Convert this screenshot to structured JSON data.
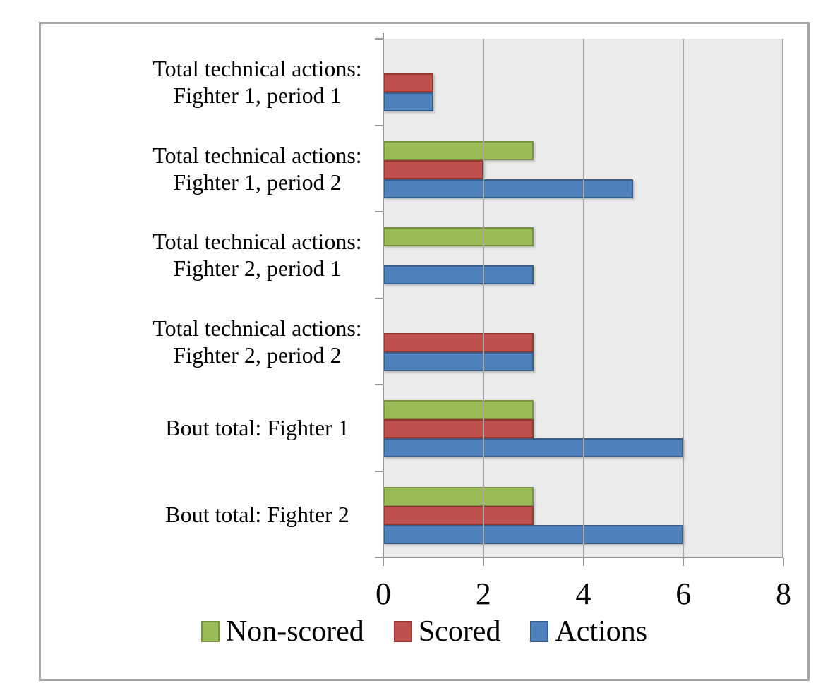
{
  "chart_data": {
    "type": "bar",
    "orientation": "horizontal",
    "title": "",
    "xlabel": "",
    "ylabel": "",
    "grid": true,
    "legend_position": "bottom",
    "categories": [
      [
        "Total technical actions:",
        "Fighter 1, period 1"
      ],
      [
        "Total technical actions:",
        "Fighter 1, period 2"
      ],
      [
        "Total technical actions:",
        "Fighter 2, period 1"
      ],
      [
        "Total technical actions:",
        "Fighter 2, period 2"
      ],
      [
        "Bout total: Fighter 1"
      ],
      [
        "Bout total: Fighter 2"
      ]
    ],
    "series": [
      {
        "name": "Non-scored",
        "fill": "#9BBB59",
        "border": "#77933C",
        "values": [
          0,
          3,
          3,
          0,
          3,
          3
        ]
      },
      {
        "name": "Scored",
        "fill": "#C0504D",
        "border": "#943634",
        "values": [
          1,
          2,
          0,
          3,
          3,
          3
        ]
      },
      {
        "name": "Actions",
        "fill": "#4F81BD",
        "border": "#385D8A",
        "values": [
          1,
          5,
          3,
          3,
          6,
          6
        ]
      }
    ],
    "x_axis": {
      "min": 0,
      "max": 8,
      "ticks": [
        0,
        2,
        4,
        6,
        8
      ]
    },
    "colors": {
      "plot_background": "#EBEBEB",
      "gridline": "#A6A6A6",
      "axis": "#969696",
      "frame_border": "#A6A6A6",
      "text": "#000000"
    }
  }
}
